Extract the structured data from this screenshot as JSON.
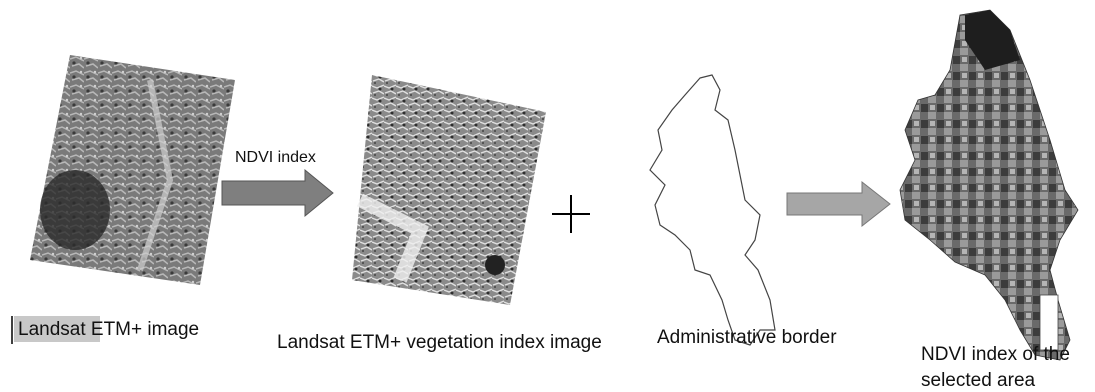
{
  "steps": [
    {
      "label": "Landsat ETM+ image"
    },
    {
      "arrow_label": "NDVI index"
    },
    {
      "label": "Landsat ETM+ vegetation index image"
    },
    {
      "label": "Administrative border"
    },
    {
      "label_lines": [
        "NDVI index of the",
        "selected area"
      ]
    }
  ]
}
